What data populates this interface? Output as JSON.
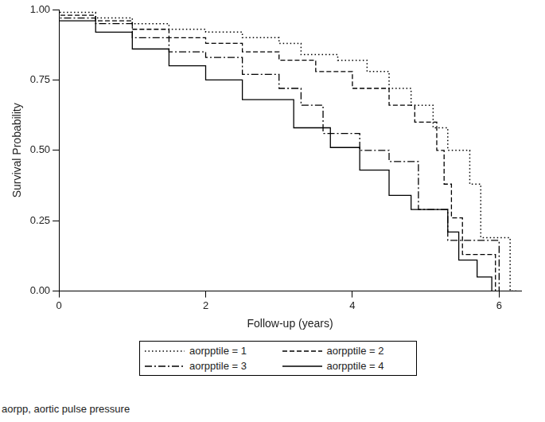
{
  "chart_data": {
    "type": "line",
    "x_label": "Follow-up (years)",
    "y_label": "Survival Probability",
    "annotations": [
      "aorpp, aortic pulse pressure"
    ],
    "xlim": [
      0,
      6.3
    ],
    "xticks": [
      0,
      2,
      4,
      6
    ],
    "ylim": [
      0,
      1
    ],
    "yticks": [
      {
        "value": 0,
        "label": "0.00"
      },
      {
        "value": 0.25,
        "label": "0.25"
      },
      {
        "value": 0.5,
        "label": "0.50"
      },
      {
        "value": 0.75,
        "label": "0.75"
      },
      {
        "value": 1,
        "label": "1.00"
      }
    ],
    "grid": false,
    "legend": "bottom",
    "series": [
      {
        "name": "aorpptile = 1",
        "color": "#000000",
        "line_style": "dotted",
        "x": [
          0,
          0.5,
          1,
          1.5,
          2,
          2.5,
          3,
          3.3,
          3.8,
          4.2,
          4.5,
          4.8,
          5.1,
          5.3,
          5.6,
          5.75,
          6.15,
          6.25
        ],
        "values": [
          1,
          0.99,
          0.97,
          0.95,
          0.93,
          0.92,
          0.9,
          0.88,
          0.84,
          0.82,
          0.78,
          0.72,
          0.66,
          0.58,
          0.5,
          0.38,
          0.19,
          0
        ]
      },
      {
        "name": "aorpptile = 2",
        "color": "#000000",
        "line_style": "dashed",
        "x": [
          0,
          0.5,
          1,
          1.5,
          2,
          2.5,
          3,
          3.5,
          4,
          4.5,
          4.85,
          5.15,
          5.25,
          5.35,
          5.5,
          5.95,
          6.1
        ],
        "values": [
          1,
          0.98,
          0.96,
          0.93,
          0.9,
          0.88,
          0.85,
          0.82,
          0.78,
          0.72,
          0.66,
          0.6,
          0.5,
          0.38,
          0.26,
          0.13,
          0
        ]
      },
      {
        "name": "aorpptile = 3",
        "color": "#000000",
        "line_style": "dashdot",
        "x": [
          0,
          0.5,
          1,
          1.5,
          2,
          2.5,
          3,
          3.3,
          3.6,
          4.1,
          4.5,
          4.9,
          5.3,
          6.0,
          6.05
        ],
        "values": [
          1,
          0.97,
          0.95,
          0.9,
          0.85,
          0.83,
          0.77,
          0.72,
          0.66,
          0.56,
          0.5,
          0.46,
          0.29,
          0.18,
          0
        ]
      },
      {
        "name": "aorpptile = 4",
        "color": "#000000",
        "line_style": "solid",
        "x": [
          0,
          0.5,
          1,
          1.5,
          2,
          2.5,
          3.2,
          3.7,
          4.1,
          4.5,
          4.8,
          5.3,
          5.45,
          5.7,
          5.9,
          6.0
        ],
        "values": [
          1,
          0.96,
          0.92,
          0.86,
          0.8,
          0.75,
          0.68,
          0.58,
          0.51,
          0.43,
          0.34,
          0.29,
          0.21,
          0.11,
          0.05,
          0
        ]
      }
    ]
  }
}
